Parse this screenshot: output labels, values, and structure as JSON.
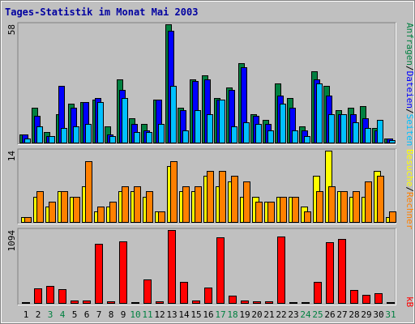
{
  "title": "Tages-Statistik im Monat Mai 2003",
  "colors": {
    "background": "#c0c0c0",
    "anfragen": "#008040",
    "dateien": "#0000ff",
    "seiten": "#00c0ff",
    "besuche": "#ffff00",
    "rechner": "#ff8000",
    "kb": "#ff0000",
    "title": "#0000a0",
    "weekend_tick": "#008040"
  },
  "legend": {
    "anfragen": "Anfragen",
    "dateien": "Dateien",
    "seiten": "Seiten",
    "besuche": "Besuche",
    "rechner": "Rechner",
    "kb": "kB",
    "sep": "/"
  },
  "chart_data": [
    {
      "type": "bar",
      "panel": "hits",
      "max_label": "58",
      "ylim": [
        0,
        58
      ],
      "categories": [
        "1",
        "2",
        "3",
        "4",
        "5",
        "6",
        "7",
        "8",
        "9",
        "10",
        "11",
        "12",
        "13",
        "14",
        "15",
        "16",
        "17",
        "18",
        "19",
        "20",
        "21",
        "22",
        "23",
        "24",
        "25",
        "26",
        "27",
        "28",
        "29",
        "30",
        "31"
      ],
      "weekend_days": [
        "3",
        "4",
        "10",
        "11",
        "17",
        "18",
        "24",
        "25",
        "31"
      ],
      "series": [
        {
          "name": "Anfragen",
          "values": [
            4,
            17,
            5,
            14,
            19,
            20,
            21,
            8,
            31,
            12,
            9,
            21,
            58,
            17,
            31,
            33,
            22,
            27,
            39,
            14,
            11,
            29,
            22,
            8,
            35,
            28,
            16,
            17,
            18,
            7,
            2
          ]
        },
        {
          "name": "Dateien",
          "values": [
            4,
            13,
            3,
            28,
            17,
            20,
            22,
            4,
            26,
            9,
            6,
            21,
            55,
            16,
            30,
            31,
            21,
            26,
            37,
            13,
            9,
            23,
            17,
            6,
            31,
            23,
            14,
            14,
            12,
            6,
            2
          ]
        },
        {
          "name": "Seiten",
          "values": [
            2,
            8,
            3,
            7,
            8,
            9,
            20,
            3,
            22,
            5,
            5,
            9,
            28,
            6,
            16,
            14,
            21,
            8,
            10,
            9,
            6,
            19,
            6,
            3,
            29,
            14,
            14,
            10,
            7,
            11,
            1
          ]
        }
      ]
    },
    {
      "type": "bar",
      "panel": "visits",
      "max_label": "14",
      "ylim": [
        0,
        14
      ],
      "categories": [
        "1",
        "2",
        "3",
        "4",
        "5",
        "6",
        "7",
        "8",
        "9",
        "10",
        "11",
        "12",
        "13",
        "14",
        "15",
        "16",
        "17",
        "18",
        "19",
        "20",
        "21",
        "22",
        "23",
        "24",
        "25",
        "26",
        "27",
        "28",
        "29",
        "30",
        "31"
      ],
      "series": [
        {
          "name": "Besuche",
          "values": [
            1,
            5,
            3,
            6,
            5,
            7,
            2,
            3,
            6,
            6,
            5,
            2,
            11,
            6,
            6,
            9,
            7,
            8,
            5,
            5,
            4,
            5,
            5,
            3,
            9,
            14,
            6,
            5,
            5,
            10,
            1
          ]
        },
        {
          "name": "Rechner",
          "values": [
            1,
            6,
            4,
            6,
            5,
            12,
            3,
            4,
            7,
            7,
            6,
            2,
            12,
            7,
            7,
            10,
            10,
            9,
            8,
            4,
            4,
            5,
            5,
            2,
            6,
            7,
            6,
            6,
            8,
            9,
            2
          ]
        }
      ]
    },
    {
      "type": "bar",
      "panel": "kb",
      "max_label": "1094",
      "ylim": [
        0,
        1094
      ],
      "categories": [
        "1",
        "2",
        "3",
        "4",
        "5",
        "6",
        "7",
        "8",
        "9",
        "10",
        "11",
        "12",
        "13",
        "14",
        "15",
        "16",
        "17",
        "18",
        "19",
        "20",
        "21",
        "22",
        "23",
        "24",
        "25",
        "26",
        "27",
        "28",
        "29",
        "30",
        "31"
      ],
      "series": [
        {
          "name": "kB",
          "values": [
            18,
            215,
            252,
            207,
            40,
            41,
            892,
            27,
            925,
            18,
            348,
            27,
            1094,
            310,
            36,
            230,
            990,
            114,
            40,
            27,
            22,
            1000,
            18,
            18,
            313,
            906,
            960,
            200,
            120,
            140,
            18
          ]
        }
      ]
    }
  ]
}
